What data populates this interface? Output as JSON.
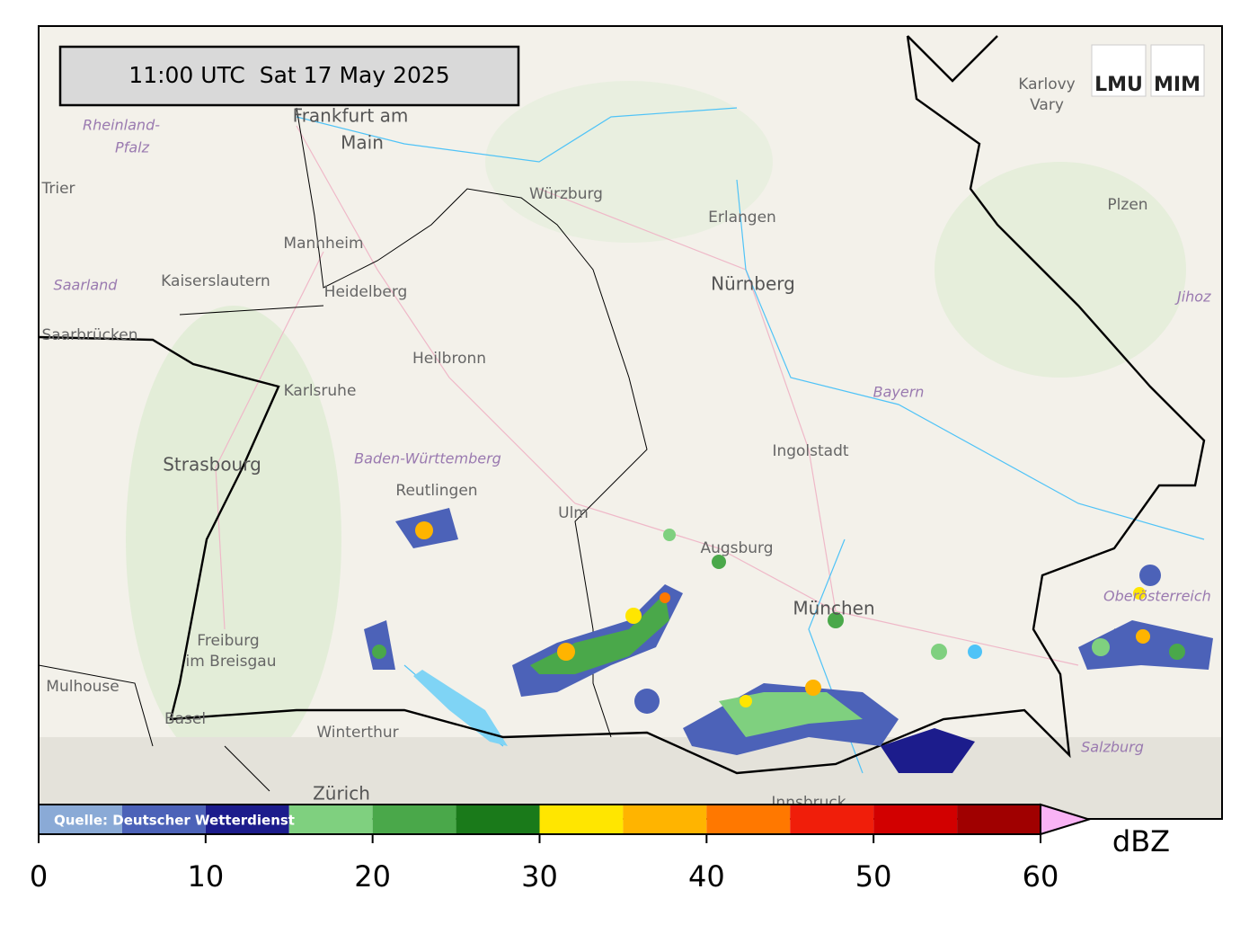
{
  "timestamp": "11:00 UTC  Sat 17 May 2025",
  "source": "Quelle: Deutscher Wetterdienst",
  "logo": {
    "left": "LMU",
    "right": "MIM"
  },
  "places": [
    "Frankfurt am",
    "Main",
    "Würzburg",
    "Erlangen",
    "Nürnberg",
    "Mannheim",
    "Kaiserslautern",
    "Heidelberg",
    "Saarland",
    "Saarbrücken",
    "Heilbronn",
    "Karlsruhe",
    "Bayern",
    "Baden-Württemberg",
    "Strasbourg",
    "Reutlingen",
    "Ingolstadt",
    "Ulm",
    "Augsburg",
    "München",
    "Freiburg",
    "im Breisgau",
    "Mulhouse",
    "Basel",
    "Winterthur",
    "Zürich",
    "Salzburg",
    "Plzen",
    "Karlovy",
    "Vary",
    "Rheinland-",
    "Pfalz",
    "Trier",
    "Oberösterreich",
    "Innsbruck",
    "Jihoz"
  ],
  "colorbar": {
    "label": "dBZ",
    "bounds": [
      0,
      5,
      10,
      15,
      20,
      25,
      30,
      35,
      40,
      45,
      50,
      55,
      60
    ],
    "colors": [
      "#8aaad6",
      "#4c62b8",
      "#1c1c8c",
      "#7fd07f",
      "#4aa84a",
      "#1a7a1a",
      "#ffe600",
      "#ffb400",
      "#ff7800",
      "#f01e0a",
      "#d20000",
      "#a00000"
    ],
    "extend_color": "#f9b3f5",
    "ticks": [
      0,
      10,
      20,
      30,
      40,
      50,
      60
    ]
  }
}
